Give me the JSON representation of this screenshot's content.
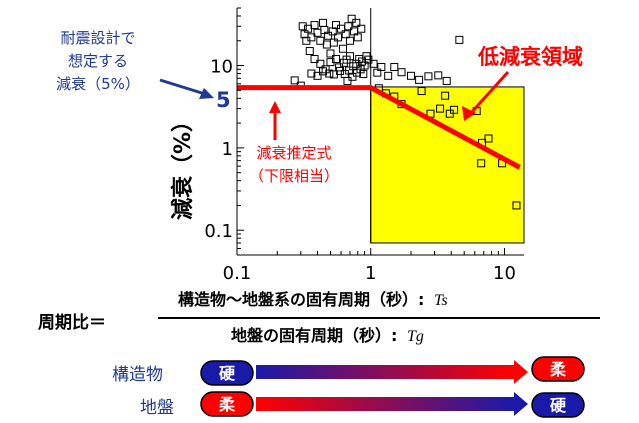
{
  "chart_data": {
    "type": "scatter",
    "x_scale": "log",
    "y_scale": "log",
    "xlim": [
      0.1,
      14
    ],
    "ylim": [
      0.05,
      50
    ],
    "grid": false,
    "x_ticks": [
      "0.1",
      "1",
      "10"
    ],
    "y_ticks": [
      "0.1",
      "1",
      "10"
    ],
    "ylabel": "減衰（%）",
    "highlight_region": {
      "label": "低減衰領域",
      "x": [
        1,
        14
      ],
      "y": [
        0.07,
        5.5
      ],
      "color": "#ffff00"
    },
    "limit_line": {
      "label_lines": [
        "減衰推定式",
        "（下限相当）"
      ],
      "color": "#ff0000",
      "points": [
        [
          0.1,
          5.4
        ],
        [
          1,
          5.4
        ],
        [
          13,
          0.58
        ]
      ]
    },
    "design_damping": {
      "value_label": "5",
      "value": 5,
      "label_lines": [
        "耐震設計で",
        "想定する",
        "減衰（5%）"
      ],
      "color": "#1f3a93"
    },
    "points": [
      [
        0.31,
        30
      ],
      [
        0.32,
        24
      ],
      [
        0.33,
        20
      ],
      [
        0.34,
        28
      ],
      [
        0.35,
        15
      ],
      [
        0.36,
        22
      ],
      [
        0.38,
        31
      ],
      [
        0.4,
        25
      ],
      [
        0.42,
        20
      ],
      [
        0.44,
        33
      ],
      [
        0.45,
        27
      ],
      [
        0.47,
        18
      ],
      [
        0.48,
        23
      ],
      [
        0.5,
        14
      ],
      [
        0.52,
        26
      ],
      [
        0.53,
        19
      ],
      [
        0.55,
        31
      ],
      [
        0.57,
        22
      ],
      [
        0.6,
        28
      ],
      [
        0.62,
        16
      ],
      [
        0.65,
        24
      ],
      [
        0.68,
        30
      ],
      [
        0.7,
        20
      ],
      [
        0.72,
        37
      ],
      [
        0.75,
        26
      ],
      [
        0.78,
        33
      ],
      [
        0.8,
        22
      ],
      [
        0.85,
        28
      ],
      [
        0.38,
        12
      ],
      [
        0.42,
        10.5
      ],
      [
        0.46,
        9
      ],
      [
        0.5,
        11
      ],
      [
        0.55,
        12
      ],
      [
        0.58,
        9.5
      ],
      [
        0.63,
        10.8
      ],
      [
        0.66,
        11.8
      ],
      [
        0.7,
        13
      ],
      [
        0.74,
        9.8
      ],
      [
        0.78,
        10.5
      ],
      [
        0.82,
        12
      ],
      [
        0.86,
        11.2
      ],
      [
        0.9,
        10
      ],
      [
        0.93,
        13
      ],
      [
        0.96,
        11.8
      ],
      [
        0.36,
        8
      ],
      [
        0.4,
        7.5
      ],
      [
        0.44,
        8.5
      ],
      [
        0.49,
        8
      ],
      [
        0.53,
        7.8
      ],
      [
        0.59,
        8.6
      ],
      [
        0.64,
        7.9
      ],
      [
        0.69,
        8.7
      ],
      [
        0.73,
        7.3
      ],
      [
        0.79,
        8.2
      ],
      [
        0.84,
        9
      ],
      [
        0.88,
        7.9
      ],
      [
        0.3,
        5.7
      ],
      [
        0.27,
        6.6
      ],
      [
        0.67,
        6.5
      ],
      [
        1.05,
        10.5
      ],
      [
        1.12,
        8.2
      ],
      [
        1.2,
        9.6
      ],
      [
        1.35,
        7.5
      ],
      [
        1.5,
        9.6
      ],
      [
        1.7,
        8.3
      ],
      [
        2.0,
        7.5
      ],
      [
        2.3,
        6.7
      ],
      [
        2.7,
        7.4
      ],
      [
        3.2,
        7.6
      ],
      [
        3.7,
        6.5
      ],
      [
        4.6,
        20.5
      ],
      [
        1.15,
        5.3
      ],
      [
        1.3,
        4.6
      ],
      [
        1.5,
        4.2
      ],
      [
        1.7,
        3.4
      ],
      [
        2.4,
        4.9
      ],
      [
        2.8,
        2.6
      ],
      [
        3.3,
        3.0
      ],
      [
        3.6,
        4.3
      ],
      [
        3.9,
        2.6
      ],
      [
        4.2,
        2.9
      ],
      [
        6.2,
        2.8
      ],
      [
        6.8,
        1.15
      ],
      [
        7.6,
        1.3
      ],
      [
        6.7,
        0.65
      ],
      [
        9.6,
        0.65
      ],
      [
        12.3,
        0.2
      ]
    ],
    "x_label_prefix": "周期比＝",
    "x_label_numerator": "構造物～地盤系の固有周期（秒）:",
    "x_label_numerator_var": "Ts",
    "x_label_denominator": "地盤の固有周期（秒）:",
    "x_label_denominator_var": "Tg"
  },
  "legend": {
    "rows": [
      {
        "label": "構造物",
        "start_badge": "硬",
        "end_badge": "柔",
        "start_color": "#1a1aa8",
        "end_color": "#ff0000"
      },
      {
        "label": "地盤",
        "start_badge": "柔",
        "end_badge": "硬",
        "start_color": "#ff0000",
        "end_color": "#1a1aa8"
      }
    ]
  }
}
